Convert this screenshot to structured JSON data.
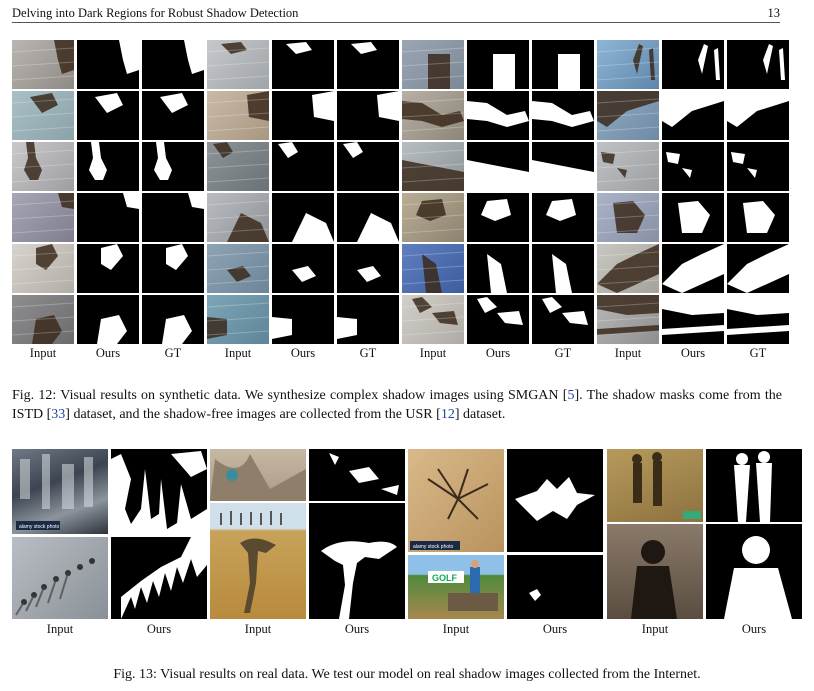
{
  "header": {
    "title": "Delving into Dark Regions for Robust Shadow Detection",
    "page_number": "13"
  },
  "figure12": {
    "column_labels": [
      "Input",
      "Ours",
      "GT",
      "Input",
      "Ours",
      "GT",
      "Input",
      "Ours",
      "GT",
      "Input",
      "Ours",
      "GT"
    ],
    "caption_prefix": "Fig. 12: Visual results on synthetic data. We synthesize complex shadow images using SMGAN [",
    "ref1": "5",
    "caption_mid1": "]. The shadow masks come from the ISTD [",
    "ref2": "33",
    "caption_mid2": "] dataset, and the shadow-free images are collected from the USR [",
    "ref3": "12",
    "caption_end": "] dataset."
  },
  "figure13": {
    "column_labels": [
      "Input",
      "Ours",
      "Input",
      "Ours",
      "Input",
      "Ours",
      "Input",
      "Ours"
    ],
    "caption": "Fig. 13: Visual results on real data. We test our model on real shadow images collected from the Internet.",
    "watermark_a": "alamy stock photo",
    "watermark_b": "alamy stock photo",
    "sign_text": "GOLF"
  },
  "colors": {
    "mask_bg": "#000000",
    "mask_fg": "#ffffff",
    "ref_link": "#2244aa"
  }
}
